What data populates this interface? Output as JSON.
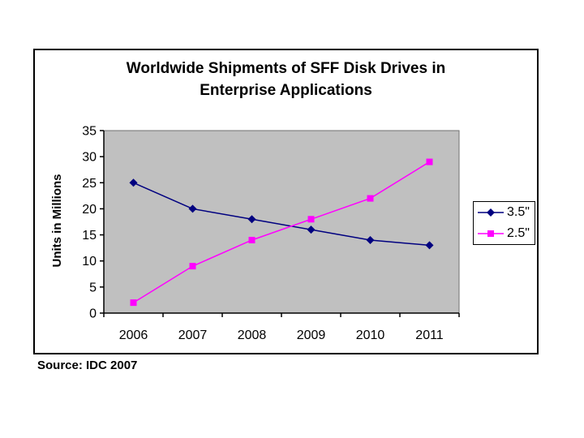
{
  "page": {
    "background": "#FFFFFF"
  },
  "source_note": "Source: IDC 2007",
  "chart_data": {
    "type": "line",
    "title": "Worldwide Shipments of SFF Disk Drives in Enterprise Applications",
    "title_lines": [
      "Worldwide Shipments of SFF Disk Drives in",
      "Enterprise Applications"
    ],
    "xlabel": "",
    "ylabel": "Units in Millions",
    "categories": [
      "2006",
      "2007",
      "2008",
      "2009",
      "2010",
      "2011"
    ],
    "series": [
      {
        "name": "3.5\"",
        "marker": "diamond",
        "color": "#000080",
        "values": [
          25,
          20,
          18,
          16,
          14,
          13
        ]
      },
      {
        "name": "2.5\"",
        "marker": "square",
        "color": "#FF00FF",
        "values": [
          2,
          9,
          14,
          18,
          22,
          29
        ]
      }
    ],
    "ylim": [
      0,
      35
    ],
    "ytick_step": 5,
    "grid": false,
    "plot_bg_color": "#C0C0C0",
    "plot_border_color": "#707070",
    "axis_color": "#000000",
    "legend_position": "right-outside"
  }
}
